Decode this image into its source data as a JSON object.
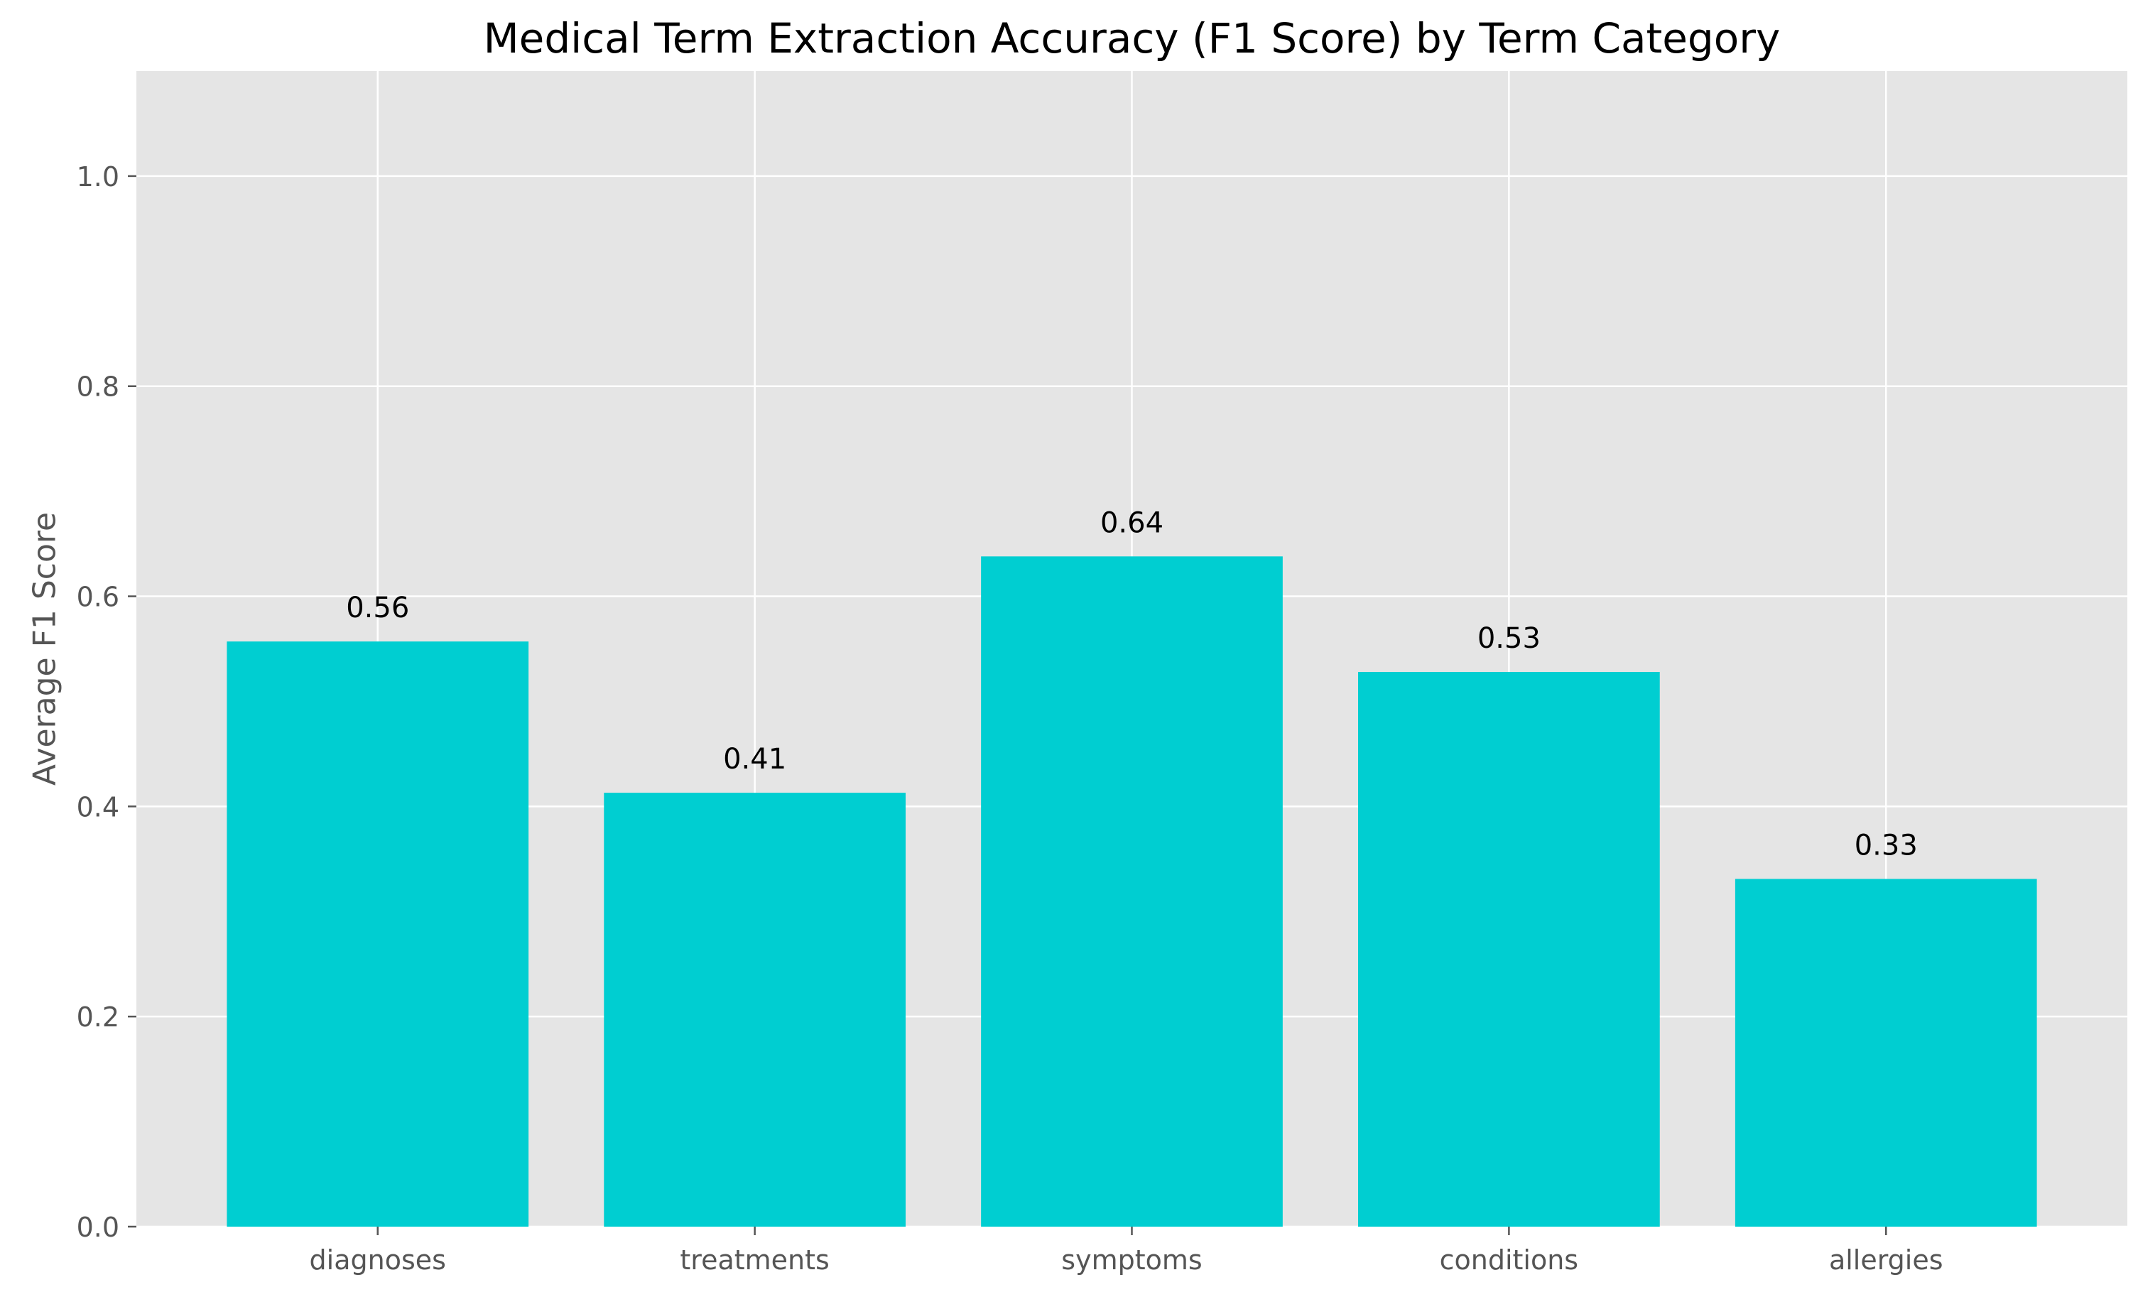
{
  "chart_data": {
    "type": "bar",
    "title": "Medical Term Extraction Accuracy (F1 Score) by Term Category",
    "xlabel": "",
    "ylabel": "Average F1 Score",
    "categories": [
      "diagnoses",
      "treatments",
      "symptoms",
      "conditions",
      "allergies"
    ],
    "values": [
      0.557,
      0.413,
      0.638,
      0.528,
      0.331
    ],
    "value_labels": [
      "0.56",
      "0.41",
      "0.64",
      "0.53",
      "0.33"
    ],
    "ylim": [
      0,
      1.1
    ],
    "yticks": [
      0.0,
      0.2,
      0.4,
      0.6,
      0.8,
      1.0
    ],
    "ytick_labels": [
      "0.0",
      "0.2",
      "0.4",
      "0.6",
      "0.8",
      "1.0"
    ],
    "grid": true,
    "colors": {
      "bar": "#00CED1",
      "plot_background": "#E5E5E5",
      "grid": "#FFFFFF",
      "text": "#555555"
    }
  }
}
